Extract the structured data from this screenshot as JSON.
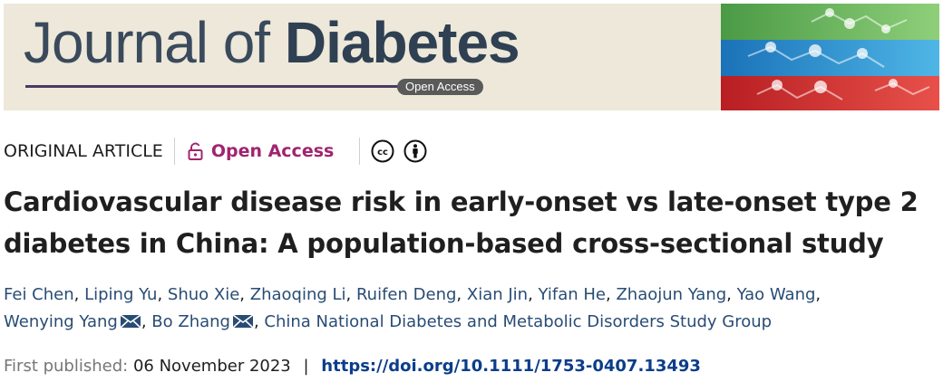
{
  "banner": {
    "journal_name_part1": "Journal of ",
    "journal_name_part2": "Diabetes",
    "badge": "Open Access",
    "cover_alt": "molecular structure cover art",
    "colors": {
      "background": "#ede8d9",
      "badge": "#5a5a5a",
      "rule": "#4b3a66"
    }
  },
  "meta": {
    "article_type": "ORIGINAL ARTICLE",
    "open_access": "Open Access",
    "license_icons": [
      "cc-icon",
      "attribution-icon"
    ],
    "accent_color": "#a0246f"
  },
  "article": {
    "title": "Cardiovascular disease risk in early-onset vs late-onset type 2 diabetes in China: A population-based cross-sectional study"
  },
  "authors": {
    "names": [
      "Fei Chen",
      "Liping Yu",
      "Shuo Xie",
      "Zhaoqing Li",
      "Ruifen Deng",
      "Xian Jin",
      "Yifan He",
      "Zhaojun Yang",
      "Yao Wang",
      "Wenying Yang",
      "Bo Zhang"
    ],
    "group": "China National Diabetes and Metabolic Disorders Study Group",
    "corresponding": [
      "Wenying Yang",
      "Bo Zhang"
    ]
  },
  "publication": {
    "label": "First published:",
    "date": "06 November 2023",
    "separator": "|",
    "doi": "https://doi.org/10.1111/1753-0407.13493"
  }
}
